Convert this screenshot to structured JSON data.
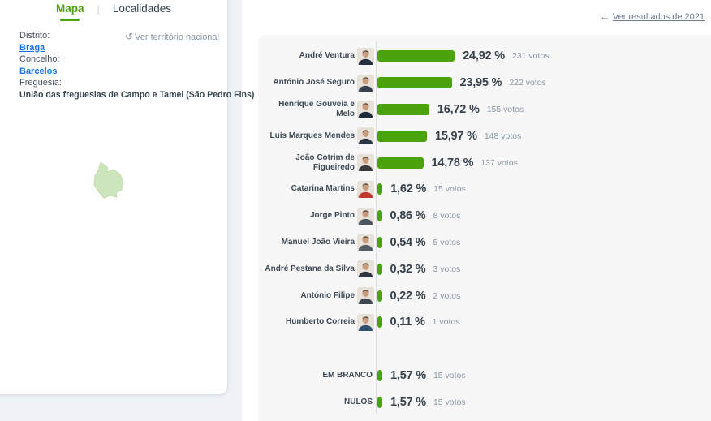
{
  "colors": {
    "bar_green": "#4aa30d",
    "tab_active_green": "#4aa30d",
    "link_blue": "#1a73e8",
    "dark_text": "#37474f",
    "votes_gray": "#8a95a5",
    "muted_link_gray": "#8a95a5",
    "results_link_gray": "#6e7b91",
    "chart_panel_bg": "#f7f7f7",
    "left_region_bg": "#eff3f8",
    "map_shape_fill": "#cde5ba"
  },
  "header": {
    "results_2021_link": "Ver resultados de 2021",
    "back_arrow_icon": "←"
  },
  "left_panel": {
    "tabs": [
      {
        "label": "Mapa",
        "active": true
      },
      {
        "label": "Localidades",
        "active": false
      }
    ],
    "tab_divider": "|",
    "territory_link": {
      "icon": "↺",
      "label": "Ver território nacional"
    },
    "district_label": "Distrito:",
    "district_value": "Braga",
    "concelho_label": "Concelho:",
    "concelho_value": "Barcelos",
    "freguesia_label": "Freguesia:",
    "freguesia_value": "União das freguesias de Campo e Tamel (São Pedro Fins)"
  },
  "chart_data": {
    "type": "bar",
    "orientation": "horizontal",
    "value_unit": "%",
    "xlim": [
      0,
      26
    ],
    "series": [
      {
        "name": "André Ventura",
        "percent": 24.92,
        "percent_label": "24,92 %",
        "votes": 231,
        "votes_label": "231 votos",
        "has_photo": true,
        "suit_color": "#233040"
      },
      {
        "name": "António José Seguro",
        "percent": 23.95,
        "percent_label": "23,95 %",
        "votes": 222,
        "votes_label": "222 votos",
        "has_photo": true,
        "suit_color": "#37414f"
      },
      {
        "name": "Henrique Gouveia e Melo",
        "percent": 16.72,
        "percent_label": "16,72 %",
        "votes": 155,
        "votes_label": "155 votos",
        "has_photo": true,
        "suit_color": "#1c2a3a"
      },
      {
        "name": "Luís Marques Mendes",
        "percent": 15.97,
        "percent_label": "15,97 %",
        "votes": 148,
        "votes_label": "148 votos",
        "has_photo": true,
        "suit_color": "#2c3644"
      },
      {
        "name": "João Cotrim de Figueiredo",
        "percent": 14.78,
        "percent_label": "14,78 %",
        "votes": 137,
        "votes_label": "137 votos",
        "has_photo": true,
        "suit_color": "#3a3a3a"
      },
      {
        "name": "Catarina Martins",
        "percent": 1.62,
        "percent_label": "1,62 %",
        "votes": 15,
        "votes_label": "15 votos",
        "has_photo": true,
        "suit_color": "#c0392b"
      },
      {
        "name": "Jorge Pinto",
        "percent": 0.86,
        "percent_label": "0,86 %",
        "votes": 8,
        "votes_label": "8 votos",
        "has_photo": true,
        "suit_color": "#4a5560"
      },
      {
        "name": "Manuel João Vieira",
        "percent": 0.54,
        "percent_label": "0,54 %",
        "votes": 5,
        "votes_label": "5 votos",
        "has_photo": true,
        "suit_color": "#565c64"
      },
      {
        "name": "André Pestana da Silva",
        "percent": 0.32,
        "percent_label": "0,32 %",
        "votes": 3,
        "votes_label": "3 votos",
        "has_photo": true,
        "suit_color": "#2f3640"
      },
      {
        "name": "António Filipe",
        "percent": 0.22,
        "percent_label": "0,22 %",
        "votes": 2,
        "votes_label": "2 votos",
        "has_photo": true,
        "suit_color": "#3d4754"
      },
      {
        "name": "Humberto Correia",
        "percent": 0.11,
        "percent_label": "0,11 %",
        "votes": 1,
        "votes_label": "1 votos",
        "has_photo": true,
        "suit_color": "#31506e"
      }
    ],
    "special_rows": [
      {
        "name": "EM BRANCO",
        "percent": 1.57,
        "percent_label": "1,57 %",
        "votes": 15,
        "votes_label": "15 votos"
      },
      {
        "name": "NULOS",
        "percent": 1.57,
        "percent_label": "1,57 %",
        "votes": 15,
        "votes_label": "15 votos"
      }
    ]
  }
}
